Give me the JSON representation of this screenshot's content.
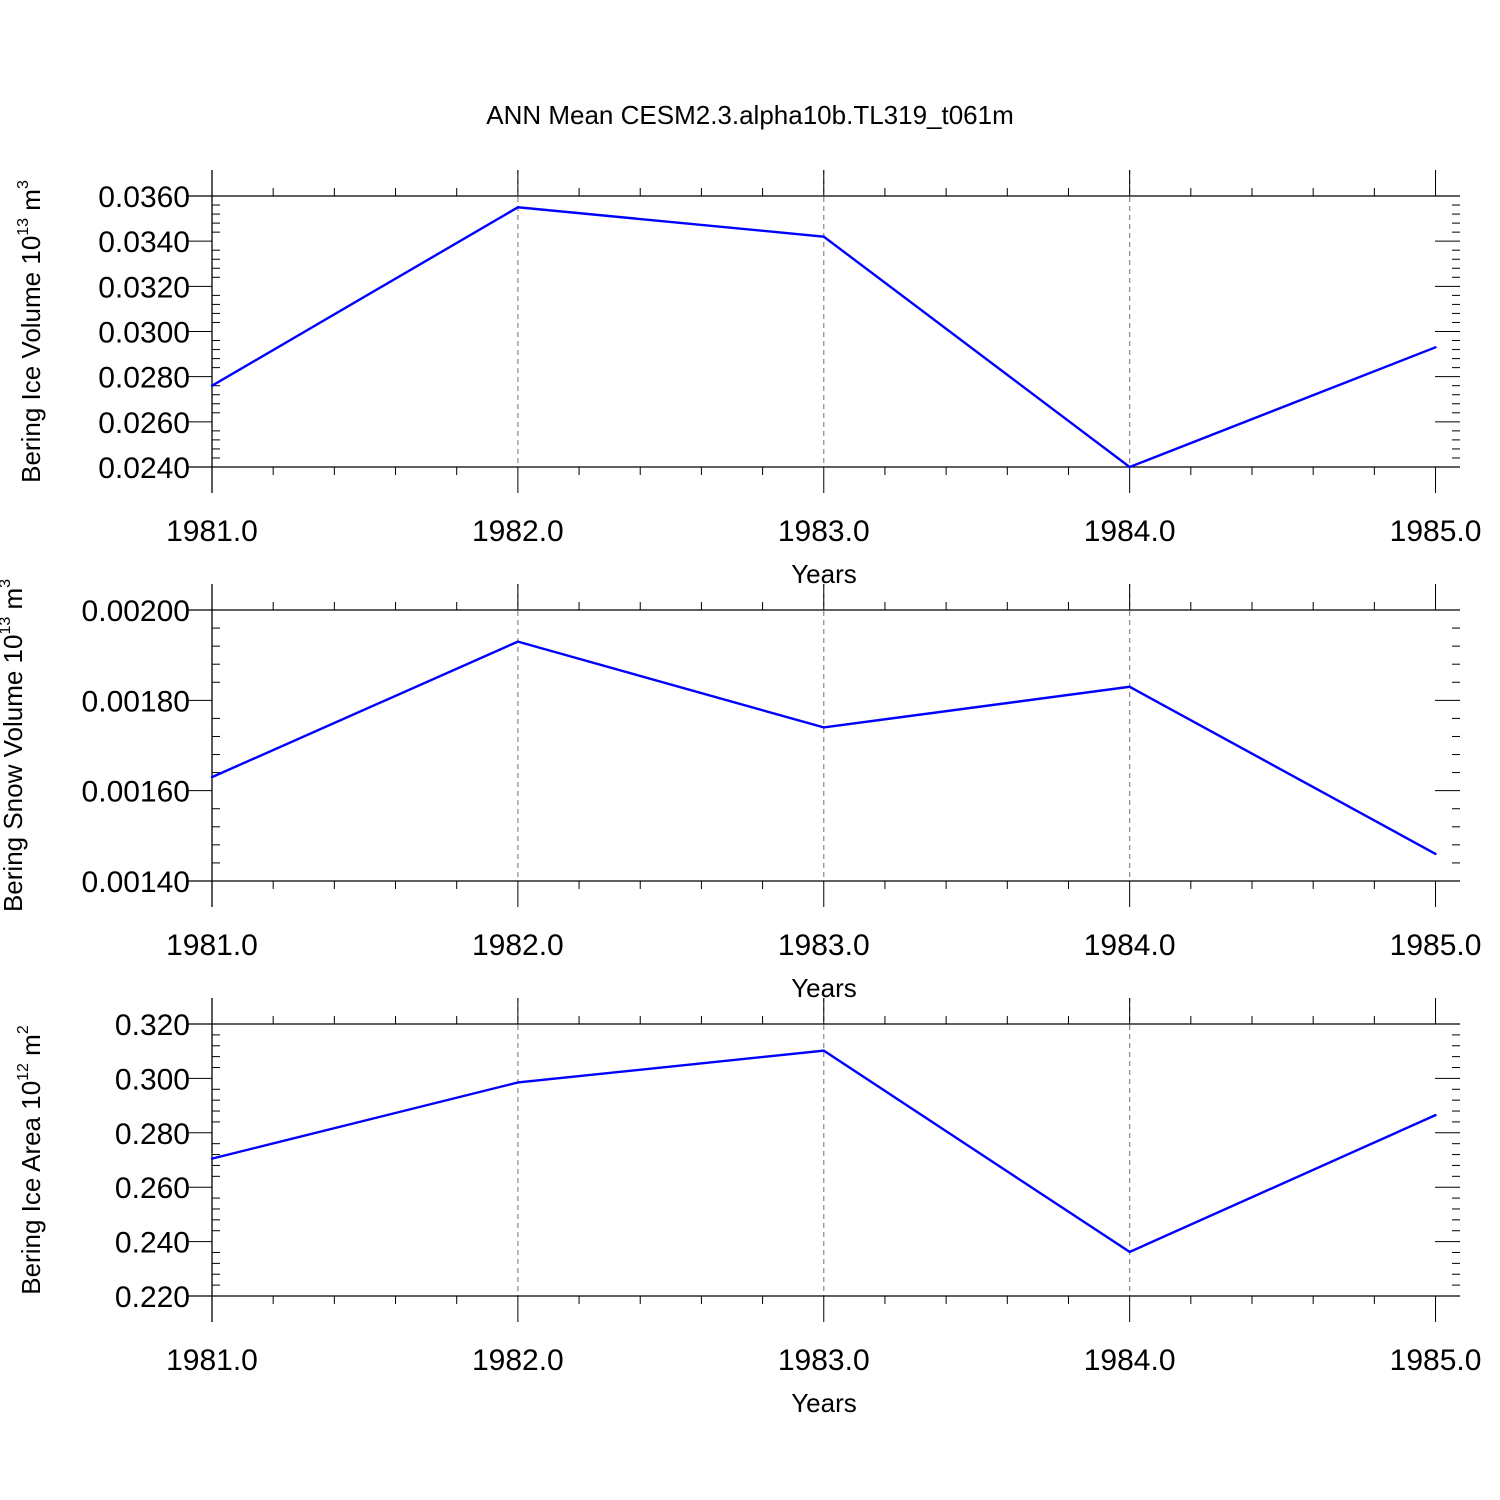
{
  "title": "ANN Mean CESM2.3.alpha10b.TL319_t061m",
  "colors": {
    "series": "#0000ff",
    "axis": "#000000",
    "grid": "#888888"
  },
  "chart_data": [
    {
      "type": "line",
      "title": "",
      "xlabel": "Years",
      "ylabel": {
        "text": "Bering Ice Volume 10",
        "exponent": "13",
        "unit": " m",
        "unit_exponent": "3"
      },
      "x": [
        1981,
        1982,
        1983,
        1984,
        1985
      ],
      "xlim": [
        1981,
        1985.08
      ],
      "xticks": [
        1981,
        1982,
        1983,
        1984,
        1985
      ],
      "xtick_labels": [
        "1981.0",
        "1982.0",
        "1983.0",
        "1984.0",
        "1985.0"
      ],
      "ylim": [
        0.024,
        0.036
      ],
      "yticks": [
        0.024,
        0.026,
        0.028,
        0.03,
        0.032,
        0.034,
        0.036
      ],
      "ytick_labels": [
        "0.0240",
        "0.0260",
        "0.0280",
        "0.0300",
        "0.0320",
        "0.0340",
        "0.0360"
      ],
      "values": [
        0.0276,
        0.0355,
        0.0342,
        0.024,
        0.0293
      ],
      "grid": "vertical dashed at major x ticks"
    },
    {
      "type": "line",
      "title": "",
      "xlabel": "Years",
      "ylabel": {
        "text": "Bering Snow Volume 10",
        "exponent": "13",
        "unit": " m",
        "unit_exponent": "3"
      },
      "x": [
        1981,
        1982,
        1983,
        1984,
        1985
      ],
      "xlim": [
        1981,
        1985.08
      ],
      "xticks": [
        1981,
        1982,
        1983,
        1984,
        1985
      ],
      "xtick_labels": [
        "1981.0",
        "1982.0",
        "1983.0",
        "1984.0",
        "1985.0"
      ],
      "ylim": [
        0.0014,
        0.002
      ],
      "yticks": [
        0.0014,
        0.0016,
        0.0018,
        0.002
      ],
      "ytick_labels": [
        "0.00140",
        "0.00160",
        "0.00180",
        "0.00200"
      ],
      "values": [
        0.00163,
        0.00193,
        0.00174,
        0.00183,
        0.00146
      ],
      "grid": "vertical dashed at major x ticks"
    },
    {
      "type": "line",
      "title": "",
      "xlabel": "Years",
      "ylabel": {
        "text": "Bering Ice Area 10",
        "exponent": "12",
        "unit": " m",
        "unit_exponent": "2"
      },
      "x": [
        1981,
        1982,
        1983,
        1984,
        1985
      ],
      "xlim": [
        1981,
        1985.08
      ],
      "xticks": [
        1981,
        1982,
        1983,
        1984,
        1985
      ],
      "xtick_labels": [
        "1981.0",
        "1982.0",
        "1983.0",
        "1984.0",
        "1985.0"
      ],
      "ylim": [
        0.22,
        0.32
      ],
      "yticks": [
        0.22,
        0.24,
        0.26,
        0.28,
        0.3,
        0.32
      ],
      "ytick_labels": [
        "0.220",
        "0.240",
        "0.260",
        "0.280",
        "0.300",
        "0.320"
      ],
      "values": [
        0.2705,
        0.2985,
        0.3102,
        0.2362,
        0.2865
      ],
      "grid": "vertical dashed at major x ticks"
    }
  ]
}
